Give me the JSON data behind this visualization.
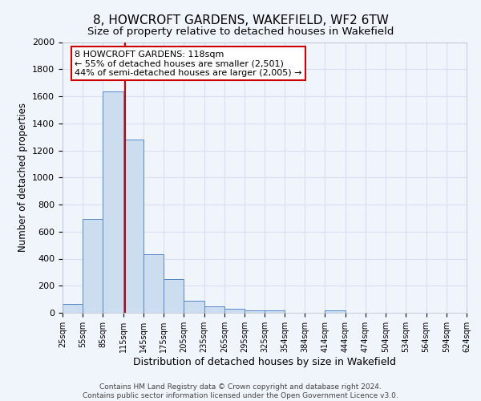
{
  "title": "8, HOWCROFT GARDENS, WAKEFIELD, WF2 6TW",
  "subtitle": "Size of property relative to detached houses in Wakefield",
  "xlabel": "Distribution of detached houses by size in Wakefield",
  "ylabel": "Number of detached properties",
  "bar_color": "#ccddf0",
  "bar_edge_color": "#5588cc",
  "background_color": "#f0f4fb",
  "grid_color": "#d8dff0",
  "bin_edges": [
    25,
    55,
    85,
    115,
    145,
    175,
    205,
    235,
    265,
    295,
    325,
    354,
    384,
    414,
    444,
    474,
    504,
    534,
    564,
    594,
    624
  ],
  "bar_heights": [
    65,
    695,
    1635,
    1280,
    435,
    250,
    90,
    50,
    30,
    20,
    15,
    0,
    0,
    15,
    0,
    0,
    0,
    0,
    0,
    0
  ],
  "property_size": 118,
  "vline_color": "#cc0000",
  "annotation_line1": "8 HOWCROFT GARDENS: 118sqm",
  "annotation_line2": "← 55% of detached houses are smaller (2,501)",
  "annotation_line3": "44% of semi-detached houses are larger (2,005) →",
  "annotation_box_color": "#ffffff",
  "annotation_border_color": "#cc0000",
  "ylim": [
    0,
    2000
  ],
  "yticks": [
    0,
    200,
    400,
    600,
    800,
    1000,
    1200,
    1400,
    1600,
    1800,
    2000
  ],
  "footer_line1": "Contains HM Land Registry data © Crown copyright and database right 2024.",
  "footer_line2": "Contains public sector information licensed under the Open Government Licence v3.0.",
  "title_fontsize": 11,
  "subtitle_fontsize": 9.5,
  "xlabel_fontsize": 9,
  "ylabel_fontsize": 8.5,
  "footer_fontsize": 6.5
}
